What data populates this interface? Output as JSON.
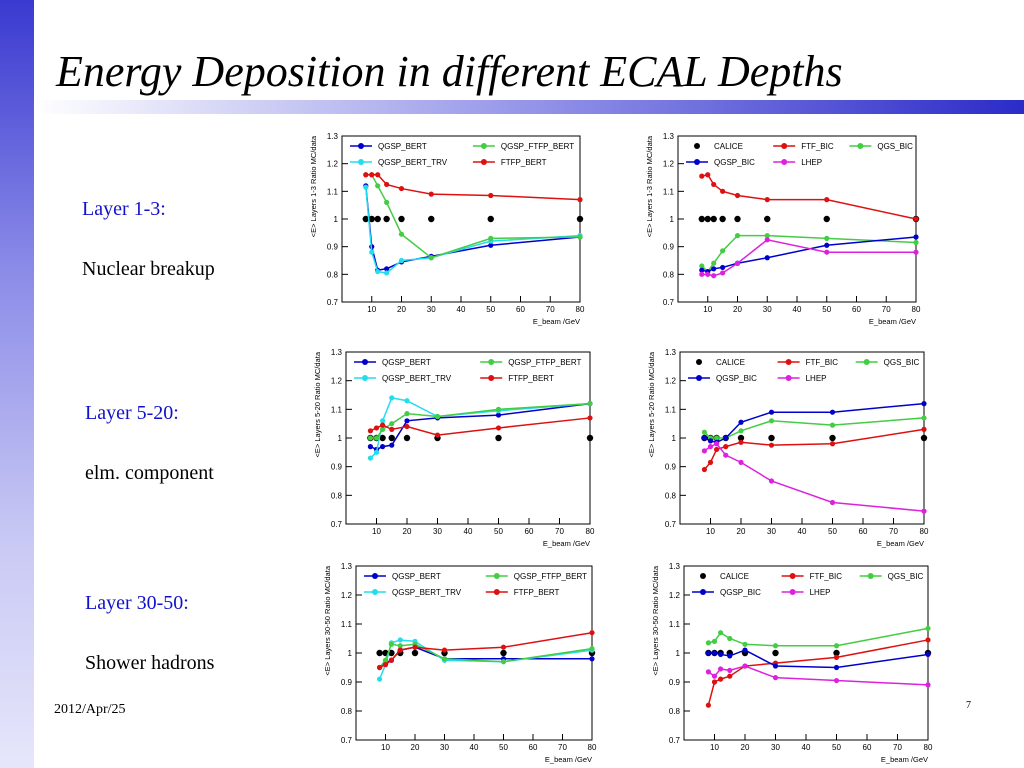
{
  "slide": {
    "title": "Energy Deposition in different ECAL Depths",
    "footer_date": "2012/Apr/25",
    "page_number": "7",
    "sections": [
      {
        "layer": "Layer 1-3:",
        "desc": "Nuclear breakup"
      },
      {
        "layer": "Layer 5-20:",
        "desc": "elm. component"
      },
      {
        "layer": "Layer 30-50:",
        "desc": "Shower hadrons"
      }
    ],
    "colors": {
      "title_text": "#000000",
      "section_label": "#1111cc",
      "sidebar": "#3a3ad0"
    }
  },
  "chart_data": [
    {
      "type": "line",
      "panel": "layer-1-3-left",
      "ylabel": "<E> Layers 1-3 Ratio MC/data",
      "xlabel": "E_beam /GeV",
      "ylim": [
        0.7,
        1.3
      ],
      "xlim": [
        0,
        80
      ],
      "yticks": [
        "0.7",
        "0.8",
        "0.9",
        "1",
        "1.1",
        "1.2",
        "1.3"
      ],
      "xticks": [
        "10",
        "20",
        "30",
        "40",
        "50",
        "60",
        "70",
        "80"
      ],
      "legend": [
        "QGSP_BERT",
        "QGSP_BERT_TRV",
        "QGSP_FTFP_BERT",
        "FTFP_BERT"
      ],
      "series": [
        {
          "name": "data",
          "color": "#000000",
          "x": [
            8,
            10,
            12,
            15,
            20,
            30,
            50,
            80
          ],
          "values": [
            1,
            1,
            1,
            1,
            1,
            1,
            1,
            1
          ]
        },
        {
          "name": "QGSP_BERT",
          "color": "#0000cc",
          "x": [
            8,
            10,
            12,
            15,
            20,
            30,
            50,
            80
          ],
          "values": [
            1.12,
            0.9,
            0.815,
            0.82,
            0.845,
            0.865,
            0.905,
            0.935
          ]
        },
        {
          "name": "QGSP_BERT_TRV",
          "color": "#22ddee",
          "x": [
            8,
            10,
            12,
            15,
            20,
            30,
            50,
            80
          ],
          "values": [
            1.115,
            0.88,
            0.81,
            0.805,
            0.85,
            0.86,
            0.92,
            0.94
          ]
        },
        {
          "name": "QGSP_FTFP_BERT",
          "color": "#44cc44",
          "x": [
            8,
            10,
            12,
            15,
            20,
            30,
            50,
            80
          ],
          "values": [
            1.16,
            1.16,
            1.12,
            1.06,
            0.945,
            0.86,
            0.93,
            0.935
          ]
        },
        {
          "name": "FTFP_BERT",
          "color": "#dd1111",
          "x": [
            8,
            10,
            12,
            15,
            20,
            30,
            50,
            80
          ],
          "values": [
            1.16,
            1.16,
            1.16,
            1.125,
            1.11,
            1.09,
            1.085,
            1.07
          ]
        }
      ]
    },
    {
      "type": "line",
      "panel": "layer-1-3-right",
      "ylabel": "<E> Layers 1-3 Ratio MC/data",
      "xlabel": "E_beam /GeV",
      "ylim": [
        0.7,
        1.3
      ],
      "xlim": [
        0,
        80
      ],
      "yticks": [
        "0.7",
        "0.8",
        "0.9",
        "1",
        "1.1",
        "1.2",
        "1.3"
      ],
      "xticks": [
        "10",
        "20",
        "30",
        "40",
        "50",
        "60",
        "70",
        "80"
      ],
      "legend": [
        "CALICE",
        "FTF_BIC",
        "QGS_BIC",
        "QGSP_BIC",
        "LHEP"
      ],
      "series": [
        {
          "name": "CALICE",
          "color": "#000000",
          "x": [
            8,
            10,
            12,
            15,
            20,
            30,
            50,
            80
          ],
          "values": [
            1,
            1,
            1,
            1,
            1,
            1,
            1,
            1
          ]
        },
        {
          "name": "FTF_BIC",
          "color": "#dd1111",
          "x": [
            8,
            10,
            12,
            15,
            20,
            30,
            50,
            80
          ],
          "values": [
            1.155,
            1.16,
            1.125,
            1.1,
            1.085,
            1.07,
            1.07,
            1.0
          ]
        },
        {
          "name": "QGS_BIC",
          "color": "#44cc44",
          "x": [
            8,
            10,
            12,
            15,
            20,
            30,
            50,
            80
          ],
          "values": [
            0.83,
            0.81,
            0.84,
            0.885,
            0.94,
            0.94,
            0.93,
            0.915
          ]
        },
        {
          "name": "QGSP_BIC",
          "color": "#0000cc",
          "x": [
            8,
            10,
            12,
            15,
            20,
            30,
            50,
            80
          ],
          "values": [
            0.815,
            0.81,
            0.82,
            0.825,
            0.84,
            0.86,
            0.905,
            0.935
          ]
        },
        {
          "name": "LHEP",
          "color": "#dd22dd",
          "x": [
            8,
            10,
            12,
            15,
            20,
            30,
            50,
            80
          ],
          "values": [
            0.8,
            0.8,
            0.795,
            0.805,
            0.84,
            0.925,
            0.88,
            0.88
          ]
        }
      ]
    },
    {
      "type": "line",
      "panel": "layer-5-20-left",
      "ylabel": "<E> Layers 5-20 Ratio MC/data",
      "xlabel": "E_beam /GeV",
      "ylim": [
        0.7,
        1.3
      ],
      "xlim": [
        0,
        80
      ],
      "yticks": [
        "0.7",
        "0.8",
        "0.9",
        "1",
        "1.1",
        "1.2",
        "1.3"
      ],
      "xticks": [
        "10",
        "20",
        "30",
        "40",
        "50",
        "60",
        "70",
        "80"
      ],
      "legend": [
        "QGSP_BERT",
        "QGSP_BERT_TRV",
        "QGSP_FTFP_BERT",
        "FTFP_BERT"
      ],
      "series": [
        {
          "name": "data",
          "color": "#000000",
          "x": [
            8,
            10,
            12,
            15,
            20,
            30,
            50,
            80
          ],
          "values": [
            1,
            1,
            1,
            1,
            1,
            1,
            1,
            1
          ]
        },
        {
          "name": "QGSP_BERT",
          "color": "#0000cc",
          "x": [
            8,
            10,
            12,
            15,
            20,
            30,
            50,
            80
          ],
          "values": [
            0.97,
            0.96,
            0.97,
            0.975,
            1.06,
            1.07,
            1.08,
            1.12
          ]
        },
        {
          "name": "QGSP_BERT_TRV",
          "color": "#22ddee",
          "x": [
            8,
            10,
            12,
            15,
            20,
            30,
            50,
            80
          ],
          "values": [
            0.93,
            0.95,
            1.06,
            1.14,
            1.13,
            1.075,
            1.095,
            1.12
          ]
        },
        {
          "name": "QGSP_FTFP_BERT",
          "color": "#44cc44",
          "x": [
            8,
            10,
            12,
            15,
            20,
            30,
            50,
            80
          ],
          "values": [
            1.0,
            1.0,
            1.03,
            1.05,
            1.085,
            1.075,
            1.1,
            1.12
          ]
        },
        {
          "name": "FTFP_BERT",
          "color": "#dd1111",
          "x": [
            8,
            10,
            12,
            15,
            20,
            30,
            50,
            80
          ],
          "values": [
            1.025,
            1.035,
            1.045,
            1.03,
            1.04,
            1.01,
            1.035,
            1.07
          ]
        }
      ]
    },
    {
      "type": "line",
      "panel": "layer-5-20-right",
      "ylabel": "<E> Layers 5-20 Ratio MC/data",
      "xlabel": "E_beam /GeV",
      "ylim": [
        0.7,
        1.3
      ],
      "xlim": [
        0,
        80
      ],
      "yticks": [
        "0.7",
        "0.8",
        "0.9",
        "1",
        "1.1",
        "1.2",
        "1.3"
      ],
      "xticks": [
        "10",
        "20",
        "30",
        "40",
        "50",
        "60",
        "70",
        "80"
      ],
      "legend": [
        "CALICE",
        "FTF_BIC",
        "QGS_BIC",
        "QGSP_BIC",
        "LHEP"
      ],
      "series": [
        {
          "name": "CALICE",
          "color": "#000000",
          "x": [
            8,
            10,
            12,
            15,
            20,
            30,
            50,
            80
          ],
          "values": [
            1,
            1,
            1,
            1,
            1,
            1,
            1,
            1
          ]
        },
        {
          "name": "FTF_BIC",
          "color": "#dd1111",
          "x": [
            8,
            10,
            12,
            15,
            20,
            30,
            50,
            80
          ],
          "values": [
            0.89,
            0.915,
            0.96,
            0.97,
            0.985,
            0.975,
            0.98,
            1.03
          ]
        },
        {
          "name": "QGS_BIC",
          "color": "#44cc44",
          "x": [
            8,
            10,
            12,
            15,
            20,
            30,
            50,
            80
          ],
          "values": [
            1.02,
            1.0,
            1.0,
            1.0,
            1.025,
            1.06,
            1.045,
            1.07
          ]
        },
        {
          "name": "QGSP_BIC",
          "color": "#0000cc",
          "x": [
            8,
            10,
            12,
            15,
            20,
            30,
            50,
            80
          ],
          "values": [
            1.0,
            0.99,
            0.985,
            1.0,
            1.055,
            1.09,
            1.09,
            1.12
          ]
        },
        {
          "name": "LHEP",
          "color": "#dd22dd",
          "x": [
            8,
            10,
            12,
            15,
            20,
            30,
            50,
            80
          ],
          "values": [
            0.955,
            0.97,
            0.98,
            0.94,
            0.915,
            0.85,
            0.775,
            0.745
          ]
        }
      ]
    },
    {
      "type": "line",
      "panel": "layer-30-50-left",
      "ylabel": "<E> Layers 30-50 Ratio MC/data",
      "xlabel": "E_beam /GeV",
      "ylim": [
        0.7,
        1.3
      ],
      "xlim": [
        0,
        80
      ],
      "yticks": [
        "0.7",
        "0.8",
        "0.9",
        "1",
        "1.1",
        "1.2",
        "1.3"
      ],
      "xticks": [
        "10",
        "20",
        "30",
        "40",
        "50",
        "60",
        "70",
        "80"
      ],
      "legend": [
        "QGSP_BERT",
        "QGSP_BERT_TRV",
        "QGSP_FTFP_BERT",
        "FTFP_BERT"
      ],
      "series": [
        {
          "name": "data",
          "color": "#000000",
          "x": [
            8,
            10,
            12,
            15,
            20,
            30,
            50,
            80
          ],
          "values": [
            1,
            1,
            1,
            1,
            1,
            1,
            1,
            1
          ]
        },
        {
          "name": "QGSP_BERT",
          "color": "#0000cc",
          "x": [
            8,
            10,
            12,
            15,
            20,
            30,
            50,
            80
          ],
          "values": [
            0.95,
            0.965,
            0.975,
            1.01,
            1.02,
            0.98,
            0.98,
            0.98
          ]
        },
        {
          "name": "QGSP_BERT_TRV",
          "color": "#22ddee",
          "x": [
            8,
            10,
            12,
            15,
            20,
            30,
            50,
            80
          ],
          "values": [
            0.91,
            0.96,
            1.035,
            1.045,
            1.04,
            0.975,
            0.97,
            1.01
          ]
        },
        {
          "name": "QGSP_FTFP_BERT",
          "color": "#44cc44",
          "x": [
            8,
            10,
            12,
            15,
            20,
            30,
            50,
            80
          ],
          "values": [
            0.95,
            0.975,
            1.03,
            1.025,
            1.03,
            0.98,
            0.97,
            1.015
          ]
        },
        {
          "name": "FTFP_BERT",
          "color": "#dd1111",
          "x": [
            8,
            10,
            12,
            15,
            20,
            30,
            50,
            80
          ],
          "values": [
            0.95,
            0.96,
            0.975,
            1.01,
            1.02,
            1.01,
            1.02,
            1.07
          ]
        }
      ]
    },
    {
      "type": "line",
      "panel": "layer-30-50-right",
      "ylabel": "<E> Layers 30-50 Ratio MC/data",
      "xlabel": "E_beam /GeV",
      "ylim": [
        0.7,
        1.3
      ],
      "xlim": [
        0,
        80
      ],
      "yticks": [
        "0.7",
        "0.8",
        "0.9",
        "1",
        "1.1",
        "1.2",
        "1.3"
      ],
      "xticks": [
        "10",
        "20",
        "30",
        "40",
        "50",
        "60",
        "70",
        "80"
      ],
      "legend": [
        "CALICE",
        "FTF_BIC",
        "QGS_BIC",
        "QGSP_BIC",
        "LHEP"
      ],
      "series": [
        {
          "name": "CALICE",
          "color": "#000000",
          "x": [
            8,
            10,
            12,
            15,
            20,
            30,
            50,
            80
          ],
          "values": [
            1,
            1,
            1,
            1,
            1,
            1,
            1,
            1
          ]
        },
        {
          "name": "FTF_BIC",
          "color": "#dd1111",
          "x": [
            8,
            10,
            12,
            15,
            20,
            30,
            50,
            80
          ],
          "values": [
            0.82,
            0.9,
            0.91,
            0.92,
            0.955,
            0.965,
            0.985,
            1.045
          ]
        },
        {
          "name": "QGS_BIC",
          "color": "#44cc44",
          "x": [
            8,
            10,
            12,
            15,
            20,
            30,
            50,
            80
          ],
          "values": [
            1.035,
            1.04,
            1.07,
            1.05,
            1.03,
            1.025,
            1.025,
            1.085
          ]
        },
        {
          "name": "QGSP_BIC",
          "color": "#0000cc",
          "x": [
            8,
            10,
            12,
            15,
            20,
            30,
            50,
            80
          ],
          "values": [
            1.0,
            1.0,
            0.995,
            0.99,
            1.01,
            0.955,
            0.95,
            0.995
          ]
        },
        {
          "name": "LHEP",
          "color": "#dd22dd",
          "x": [
            8,
            10,
            12,
            15,
            20,
            30,
            50,
            80
          ],
          "values": [
            0.935,
            0.92,
            0.945,
            0.94,
            0.955,
            0.915,
            0.905,
            0.89
          ]
        }
      ]
    }
  ]
}
